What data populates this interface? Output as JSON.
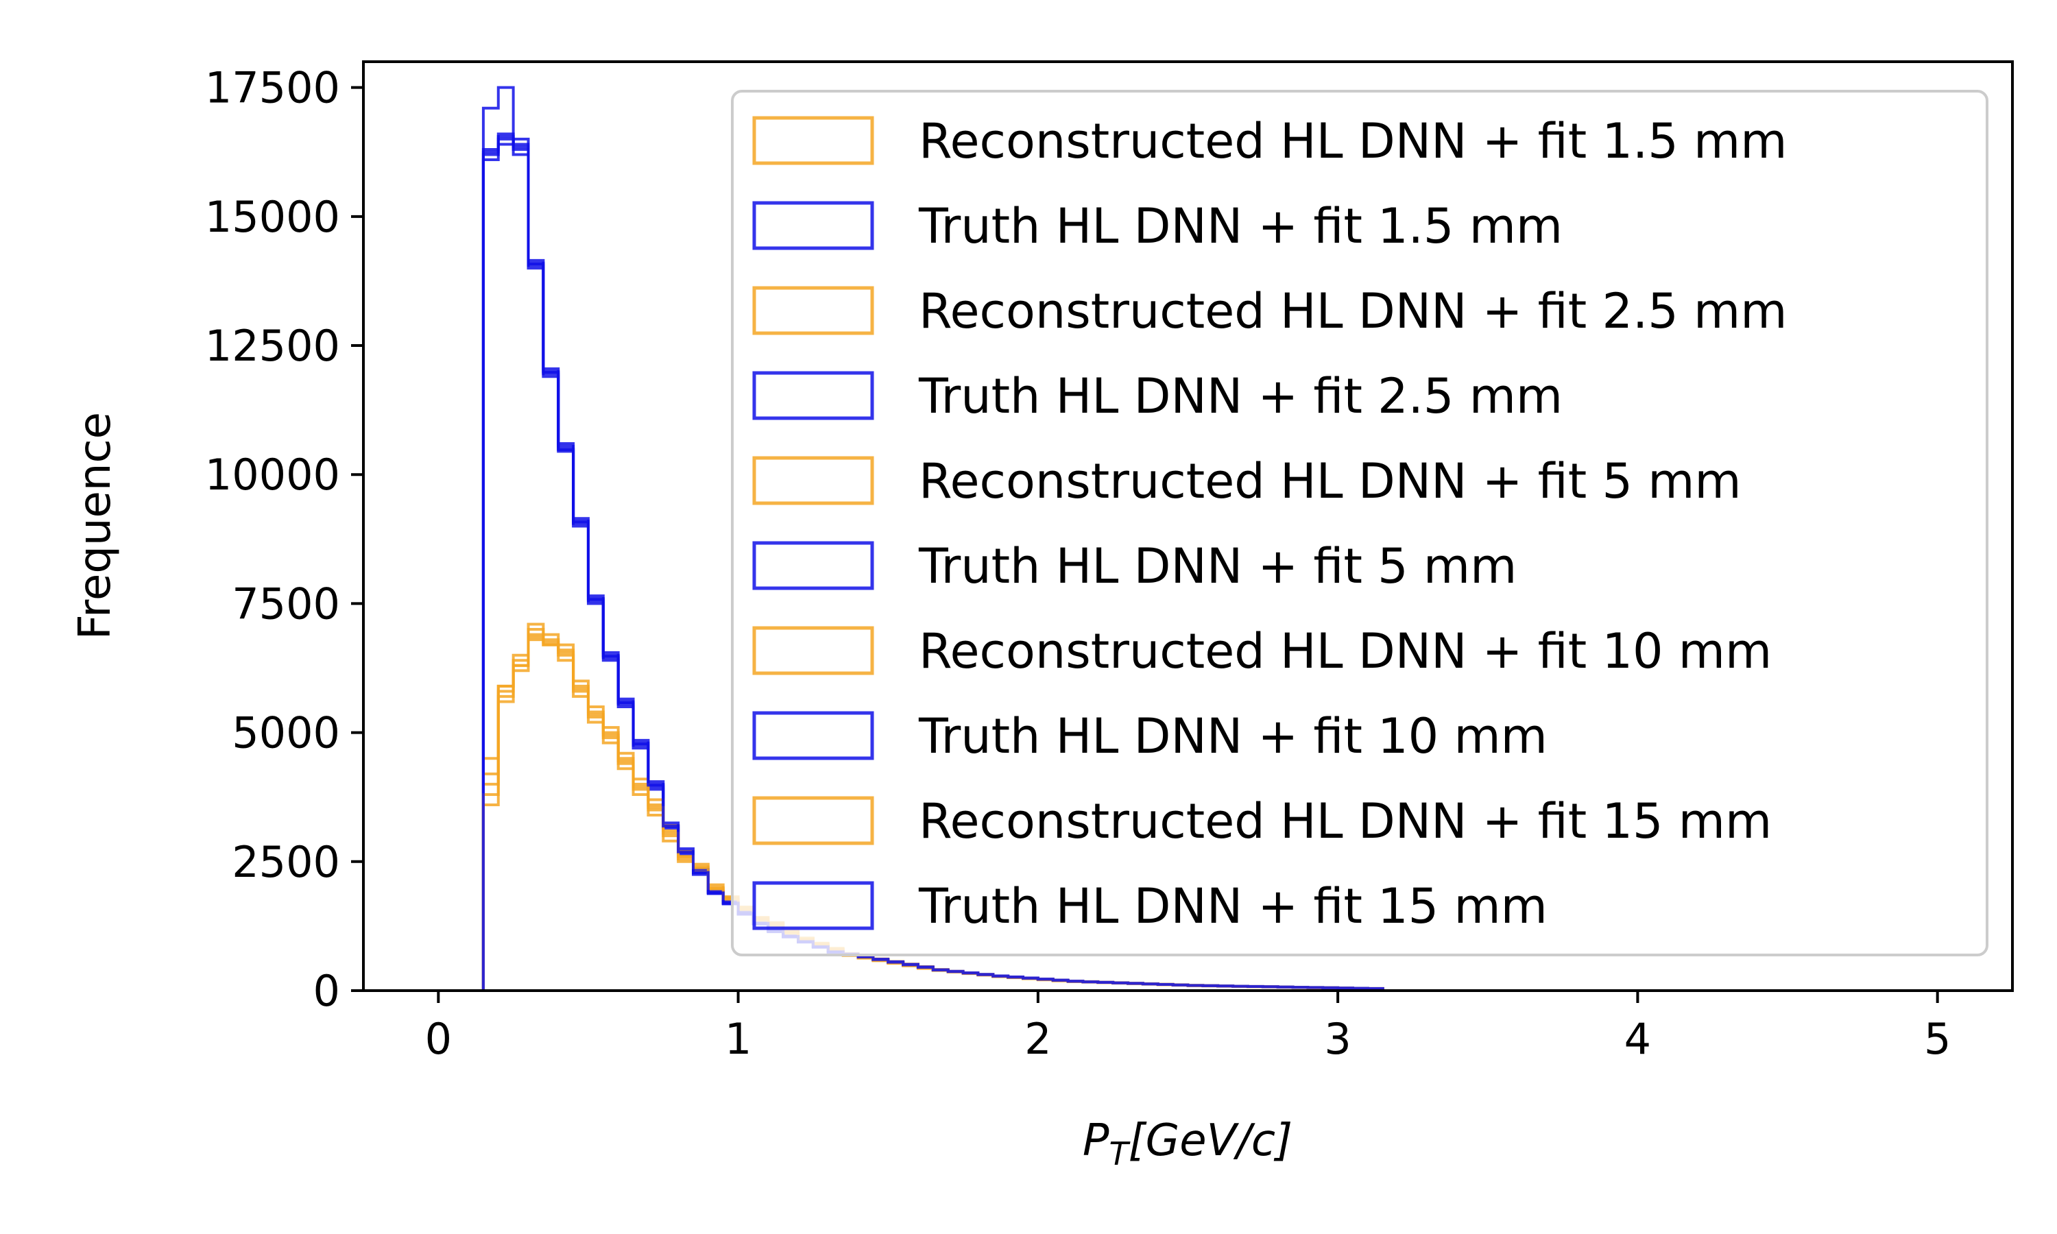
{
  "chart_data": {
    "type": "histogram",
    "title": "",
    "xlabel": "P_T[GeV/c]",
    "xlabel_main": "P",
    "xlabel_sub": "T",
    "xlabel_rest": "[GeV/c]",
    "ylabel": "Frequence",
    "xlim": [
      -0.25,
      5.25
    ],
    "ylim": [
      0,
      18000
    ],
    "x_ticks": [
      "0",
      "1",
      "2",
      "3",
      "4",
      "5"
    ],
    "y_ticks": [
      "0",
      "2500",
      "5000",
      "7500",
      "10000",
      "12500",
      "15000",
      "17500"
    ],
    "bin_width": 0.05,
    "bin_start": 0.15,
    "legend_position": "upper right",
    "colors": {
      "reconstructed": "#f5a623",
      "truth": "#1010e8"
    },
    "series": [
      {
        "name": "Reconstructed HL DNN + fit 1.5 mm",
        "group": "reconstructed",
        "values": [
          3600,
          5900,
          6300,
          6900,
          6800,
          6600,
          5800,
          5400,
          5000,
          4500,
          4000,
          3600,
          3100,
          2600,
          2400,
          2000,
          1800,
          1600,
          1400,
          1300,
          1150,
          1000,
          900,
          800,
          700,
          650,
          600,
          550,
          500,
          450,
          400,
          370,
          340,
          310,
          280,
          260,
          240,
          220,
          200,
          180,
          170,
          160,
          150,
          140,
          130,
          120,
          110,
          100,
          95,
          90,
          85,
          80,
          75,
          70,
          65,
          60,
          55,
          50,
          45,
          40
        ]
      },
      {
        "name": "Truth HL DNN + fit 1.5 mm",
        "group": "truth",
        "values": [
          17100,
          17500,
          16300,
          14000,
          12000,
          10600,
          9000,
          7500,
          6500,
          5600,
          4800,
          4000,
          3200,
          2700,
          2300,
          1900,
          1700,
          1500,
          1300,
          1150,
          1050,
          950,
          850,
          750,
          700,
          650,
          600,
          550,
          500,
          450,
          400,
          370,
          340,
          310,
          280,
          260,
          240,
          220,
          200,
          180,
          170,
          160,
          150,
          140,
          130,
          120,
          110,
          100,
          95,
          90,
          85,
          80,
          75,
          70,
          65,
          60,
          55,
          50,
          45,
          40
        ]
      },
      {
        "name": "Reconstructed HL DNN + fit 2.5 mm",
        "group": "reconstructed",
        "values": [
          4000,
          5800,
          6400,
          7000,
          6700,
          6500,
          5900,
          5300,
          4900,
          4400,
          3900,
          3500,
          3000,
          2550,
          2350,
          1950,
          1750,
          1550,
          1380,
          1280,
          1130,
          990,
          890,
          790,
          690,
          640,
          590,
          540,
          490,
          440,
          395,
          365,
          335,
          305,
          275,
          255,
          235,
          215,
          195,
          178,
          168,
          158,
          148,
          138,
          128,
          118,
          108,
          98,
          93,
          88,
          83,
          78,
          73,
          68,
          63,
          58,
          53,
          48,
          43,
          38
        ]
      },
      {
        "name": "Truth HL DNN + fit 2.5 mm",
        "group": "truth",
        "values": [
          16200,
          16500,
          16400,
          14100,
          11900,
          10500,
          9100,
          7600,
          6400,
          5500,
          4700,
          3900,
          3150,
          2650,
          2250,
          1880,
          1680,
          1480,
          1290,
          1140,
          1040,
          940,
          840,
          745,
          695,
          645,
          595,
          545,
          495,
          445,
          398,
          368,
          338,
          308,
          278,
          258,
          238,
          218,
          198,
          178,
          168,
          158,
          148,
          138,
          128,
          118,
          108,
          98,
          93,
          88,
          83,
          78,
          73,
          68,
          63,
          58,
          53,
          48,
          43,
          38
        ]
      },
      {
        "name": "Reconstructed HL DNN + fit 5 mm",
        "group": "reconstructed",
        "values": [
          4500,
          5600,
          6200,
          6800,
          6700,
          6400,
          5700,
          5200,
          4800,
          4300,
          3800,
          3400,
          2900,
          2500,
          2300,
          1900,
          1700,
          1500,
          1350,
          1250,
          1100,
          970,
          870,
          770,
          680,
          630,
          580,
          530,
          480,
          430,
          390,
          360,
          330,
          300,
          270,
          250,
          230,
          210,
          190,
          175,
          165,
          155,
          145,
          135,
          125,
          115,
          105,
          95,
          90,
          85,
          80,
          75,
          70,
          65,
          60,
          55,
          50,
          45,
          40,
          35
        ]
      },
      {
        "name": "Truth HL DNN + fit 5 mm",
        "group": "truth",
        "values": [
          16300,
          16600,
          16200,
          14050,
          11950,
          10450,
          9050,
          7550,
          6450,
          5550,
          4750,
          3950,
          3180,
          2680,
          2280,
          1890,
          1690,
          1490,
          1300,
          1145,
          1045,
          945,
          845,
          748,
          698,
          648,
          598,
          548,
          498,
          448,
          399,
          369,
          339,
          309,
          279,
          259,
          239,
          219,
          199,
          179,
          169,
          159,
          149,
          139,
          129,
          119,
          109,
          99,
          94,
          89,
          84,
          79,
          74,
          69,
          64,
          59,
          54,
          49,
          44,
          39
        ]
      },
      {
        "name": "Reconstructed HL DNN + fit 10 mm",
        "group": "reconstructed",
        "values": [
          4200,
          5900,
          6500,
          7100,
          6900,
          6700,
          6000,
          5500,
          5100,
          4600,
          4100,
          3700,
          3200,
          2700,
          2450,
          2050,
          1820,
          1620,
          1420,
          1320,
          1170,
          1020,
          920,
          820,
          720,
          665,
          615,
          565,
          515,
          465,
          410,
          375,
          345,
          315,
          285,
          265,
          245,
          225,
          205,
          185,
          175,
          165,
          155,
          145,
          135,
          125,
          115,
          105,
          98,
          92,
          87,
          82,
          77,
          72,
          67,
          62,
          57,
          52,
          47,
          42
        ]
      },
      {
        "name": "Truth HL DNN + fit 10 mm",
        "group": "truth",
        "values": [
          16100,
          16400,
          16500,
          14150,
          12050,
          10550,
          9150,
          7650,
          6550,
          5650,
          4850,
          4050,
          3250,
          2750,
          2350,
          1920,
          1720,
          1520,
          1310,
          1160,
          1060,
          960,
          860,
          760,
          710,
          660,
          610,
          560,
          510,
          460,
          405,
          375,
          345,
          315,
          285,
          265,
          245,
          225,
          205,
          185,
          172,
          162,
          152,
          142,
          132,
          122,
          112,
          102,
          96,
          91,
          86,
          81,
          76,
          71,
          66,
          61,
          56,
          51,
          46,
          41
        ]
      },
      {
        "name": "Reconstructed HL DNN + fit 15 mm",
        "group": "reconstructed",
        "values": [
          3800,
          5700,
          6300,
          6850,
          6750,
          6550,
          5850,
          5350,
          4950,
          4450,
          3950,
          3550,
          3050,
          2600,
          2380,
          1980,
          1780,
          1580,
          1390,
          1290,
          1140,
          995,
          895,
          795,
          695,
          645,
          595,
          545,
          495,
          445,
          398,
          368,
          338,
          308,
          278,
          258,
          238,
          218,
          198,
          179,
          169,
          159,
          149,
          139,
          129,
          119,
          109,
          99,
          94,
          89,
          84,
          79,
          74,
          69,
          64,
          59,
          54,
          49,
          44,
          39
        ]
      },
      {
        "name": "Truth HL DNN + fit 15 mm",
        "group": "truth",
        "values": [
          16250,
          16550,
          16350,
          14080,
          11980,
          10480,
          9080,
          7580,
          6480,
          5580,
          4780,
          3980,
          3190,
          2690,
          2290,
          1895,
          1695,
          1495,
          1305,
          1150,
          1050,
          950,
          850,
          752,
          702,
          652,
          602,
          552,
          502,
          452,
          401,
          371,
          341,
          311,
          281,
          261,
          241,
          221,
          201,
          181,
          170,
          160,
          150,
          140,
          130,
          120,
          110,
          100,
          95,
          90,
          85,
          80,
          75,
          70,
          65,
          60,
          55,
          50,
          45,
          40
        ]
      }
    ]
  }
}
